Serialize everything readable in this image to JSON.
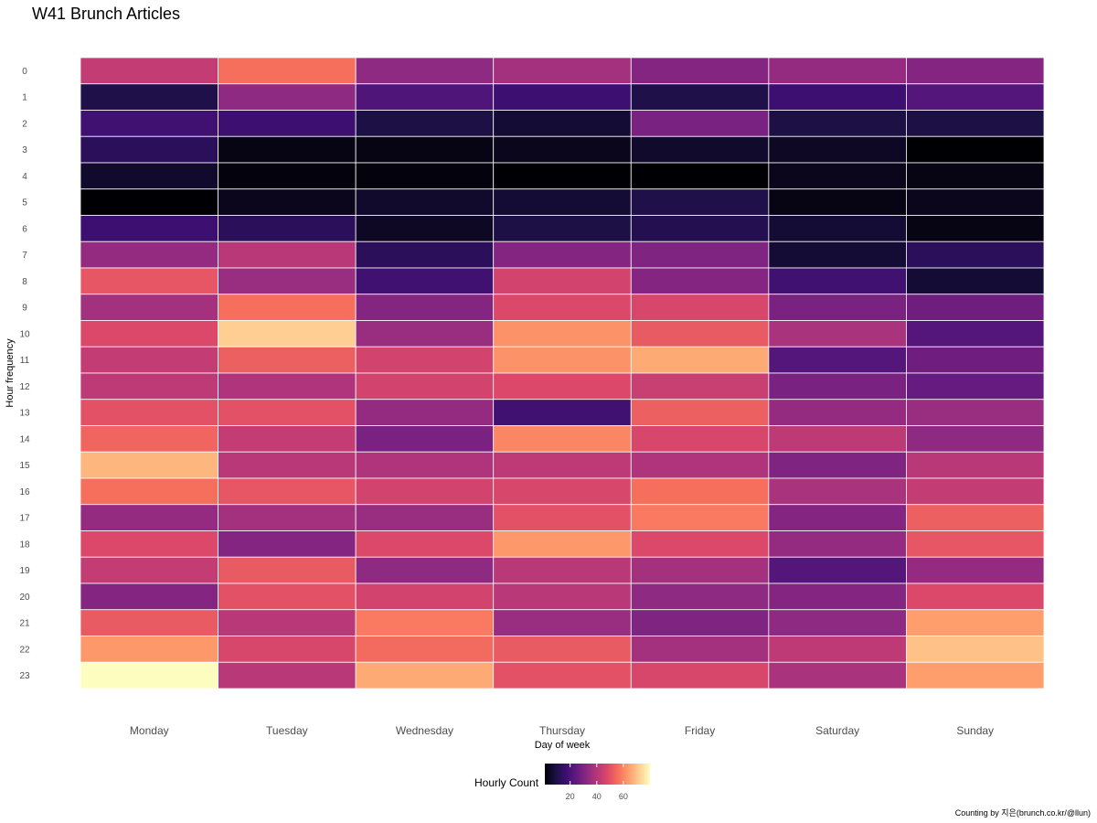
{
  "chart_data": {
    "type": "heatmap",
    "title": "W41 Brunch Articles",
    "xlabel": "Day of week",
    "ylabel": "Hour frequency",
    "x_categories": [
      "Monday",
      "Tuesday",
      "Wednesday",
      "Thursday",
      "Friday",
      "Saturday",
      "Sunday"
    ],
    "y_categories": [
      "0",
      "1",
      "2",
      "3",
      "4",
      "5",
      "6",
      "7",
      "8",
      "9",
      "10",
      "11",
      "12",
      "13",
      "14",
      "15",
      "16",
      "17",
      "18",
      "19",
      "20",
      "21",
      "22",
      "23"
    ],
    "values": [
      [
        43,
        56,
        33,
        37,
        31,
        34,
        31
      ],
      [
        10,
        33,
        21,
        17,
        10,
        17,
        22
      ],
      [
        18,
        17,
        9,
        7,
        29,
        9,
        9
      ],
      [
        13,
        3,
        3,
        4,
        6,
        5,
        1
      ],
      [
        6,
        2,
        2,
        1,
        1,
        4,
        3
      ],
      [
        1,
        4,
        6,
        7,
        10,
        3,
        4
      ],
      [
        17,
        13,
        5,
        9,
        11,
        7,
        3
      ],
      [
        34,
        41,
        13,
        31,
        30,
        7,
        13
      ],
      [
        51,
        35,
        18,
        46,
        31,
        18,
        7
      ],
      [
        37,
        56,
        31,
        48,
        47,
        29,
        27
      ],
      [
        48,
        72,
        35,
        62,
        52,
        38,
        22
      ],
      [
        43,
        53,
        46,
        62,
        66,
        22,
        27
      ],
      [
        42,
        39,
        46,
        48,
        44,
        29,
        25
      ],
      [
        50,
        50,
        34,
        18,
        53,
        34,
        35
      ],
      [
        54,
        43,
        29,
        60,
        47,
        42,
        33
      ],
      [
        68,
        41,
        39,
        42,
        39,
        30,
        41
      ],
      [
        56,
        51,
        46,
        47,
        56,
        38,
        43
      ],
      [
        34,
        37,
        35,
        50,
        58,
        31,
        53
      ],
      [
        48,
        31,
        48,
        63,
        48,
        34,
        51
      ],
      [
        43,
        52,
        33,
        41,
        37,
        22,
        34
      ],
      [
        31,
        50,
        46,
        41,
        33,
        31,
        48
      ],
      [
        52,
        41,
        58,
        35,
        30,
        33,
        64
      ],
      [
        63,
        47,
        55,
        52,
        37,
        42,
        70
      ],
      [
        80,
        41,
        66,
        50,
        47,
        38,
        64
      ]
    ],
    "colorscale": "magma",
    "color_range": [
      1,
      80
    ],
    "legend": {
      "title": "Hourly Count",
      "ticks": [
        20,
        40,
        60
      ],
      "position": "bottom"
    },
    "grid": false
  },
  "caption": "Counting by 지은(brunch.co.kr/@llun)"
}
